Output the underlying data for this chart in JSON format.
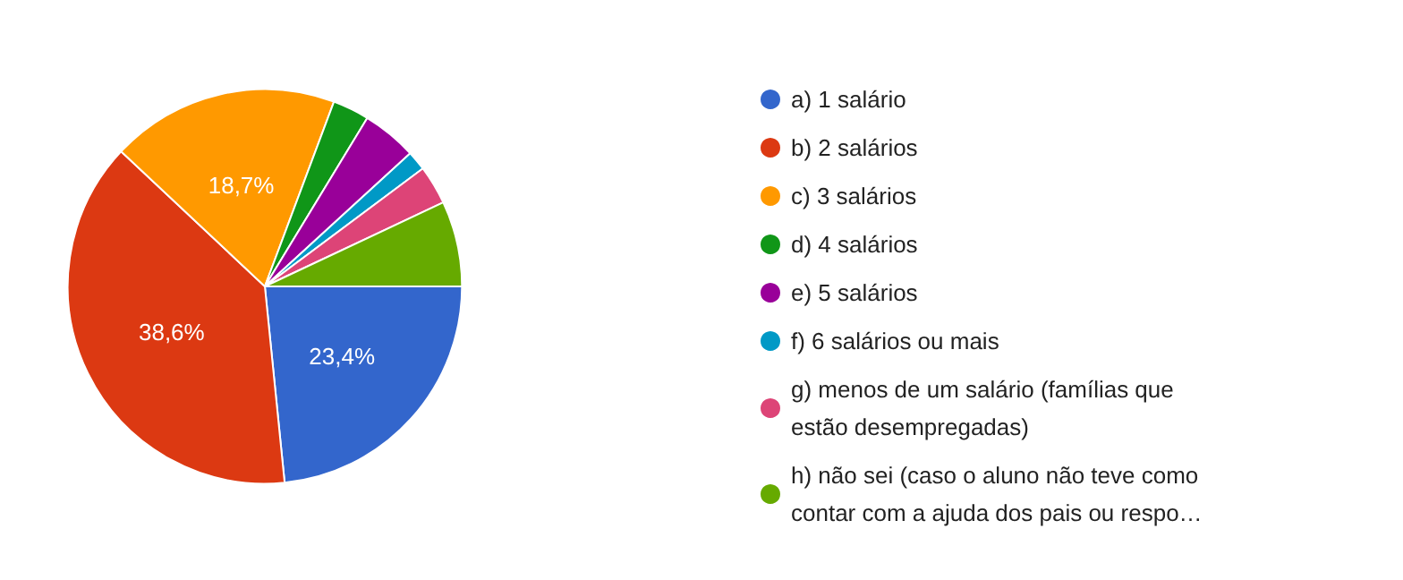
{
  "chart_data": {
    "type": "pie",
    "categories": [
      "a) 1 salário",
      "b) 2 salários",
      "c) 3 salários",
      "d) 4 salários",
      "e) 5 salários",
      "f) 6 salários ou mais",
      "g) menos de um salário (famílias que estão desempregadas)",
      "h) não sei (caso o aluno não teve como contar com a ajuda dos pais ou respo…"
    ],
    "values": [
      23.4,
      38.6,
      18.7,
      3.0,
      4.5,
      1.6,
      3.2,
      7.0
    ],
    "colors": [
      "#3366cc",
      "#dc3912",
      "#ff9900",
      "#109618",
      "#990099",
      "#0099c6",
      "#dd4477",
      "#66aa00"
    ],
    "value_labels": [
      "23,4%",
      "38,6%",
      "18,7%",
      null,
      null,
      null,
      null,
      null
    ],
    "legend": "right"
  }
}
